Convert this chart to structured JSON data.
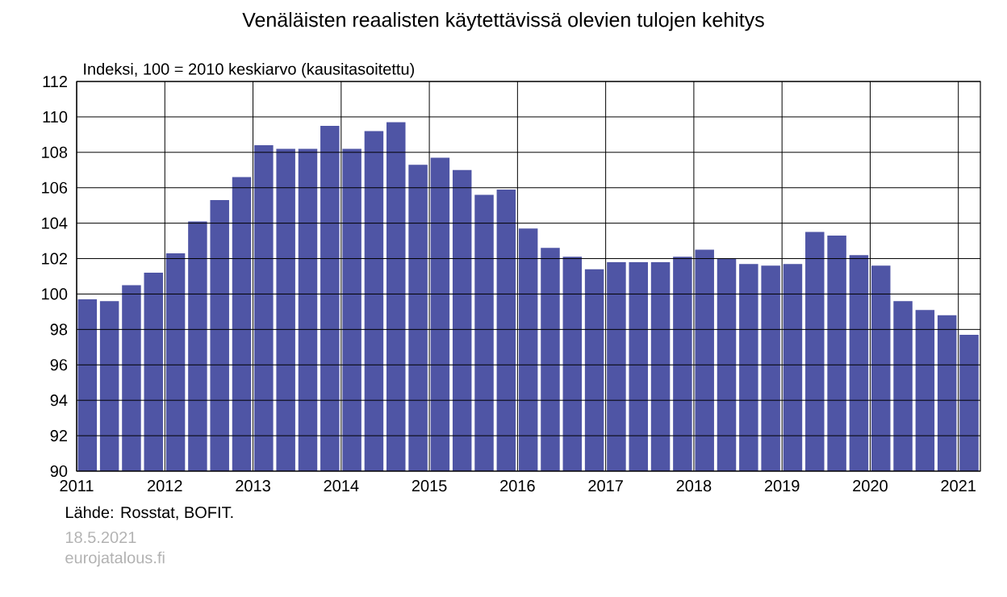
{
  "chart_data": {
    "type": "bar",
    "title": "Venäläisten reaalisten käytettävissä olevien tulojen kehitys",
    "ylabel": "Indeksi, 100 = 2010 keskiarvo (kausitasoitettu)",
    "x": [
      "2011-02-15",
      "2011-05-15",
      "2011-08-15",
      "2011-11-15",
      "2012-02-15",
      "2012-05-15",
      "2012-08-15",
      "2012-11-15",
      "2013-02-15",
      "2013-05-15",
      "2013-08-15",
      "2013-11-15",
      "2014-02-15",
      "2014-05-15",
      "2014-08-15",
      "2014-11-15",
      "2015-02-15",
      "2015-05-15",
      "2015-08-15",
      "2015-11-15",
      "2016-02-15",
      "2016-05-15",
      "2016-08-15",
      "2016-11-15",
      "2017-02-15",
      "2017-05-15",
      "2017-08-15",
      "2017-11-15",
      "2018-02-15",
      "2018-05-15",
      "2018-08-15",
      "2018-11-15",
      "2019-02-15",
      "2019-05-15",
      "2019-08-15",
      "2019-11-15",
      "2020-02-15",
      "2020-05-15",
      "2020-08-15",
      "2020-11-15",
      "2021-02-15"
    ],
    "values": [
      99.7,
      99.6,
      100.5,
      101.2,
      102.3,
      104.1,
      105.3,
      106.6,
      108.4,
      108.2,
      108.2,
      109.5,
      108.2,
      109.2,
      109.7,
      107.3,
      107.7,
      107.0,
      105.6,
      105.9,
      103.7,
      102.6,
      102.1,
      101.4,
      101.8,
      101.8,
      101.8,
      102.1,
      102.5,
      102.0,
      101.7,
      101.6,
      101.7,
      103.5,
      103.3,
      102.2,
      101.6,
      99.6,
      99.1,
      98.8,
      97.7
    ],
    "color": "#4f55a5",
    "xlim": [
      "2011",
      "2021-04"
    ],
    "xticks": [
      "2011",
      "2012",
      "2013",
      "2014",
      "2015",
      "2016",
      "2017",
      "2018",
      "2019",
      "2020",
      "2021"
    ],
    "ylim": [
      90,
      112
    ],
    "yticks": [
      90,
      92,
      94,
      96,
      98,
      100,
      102,
      104,
      106,
      108,
      110,
      112
    ],
    "grid": true,
    "annotations": [
      "Lähde: Rosstat, BOFIT.",
      "18.5.2021",
      "eurojatalous.fi"
    ]
  }
}
